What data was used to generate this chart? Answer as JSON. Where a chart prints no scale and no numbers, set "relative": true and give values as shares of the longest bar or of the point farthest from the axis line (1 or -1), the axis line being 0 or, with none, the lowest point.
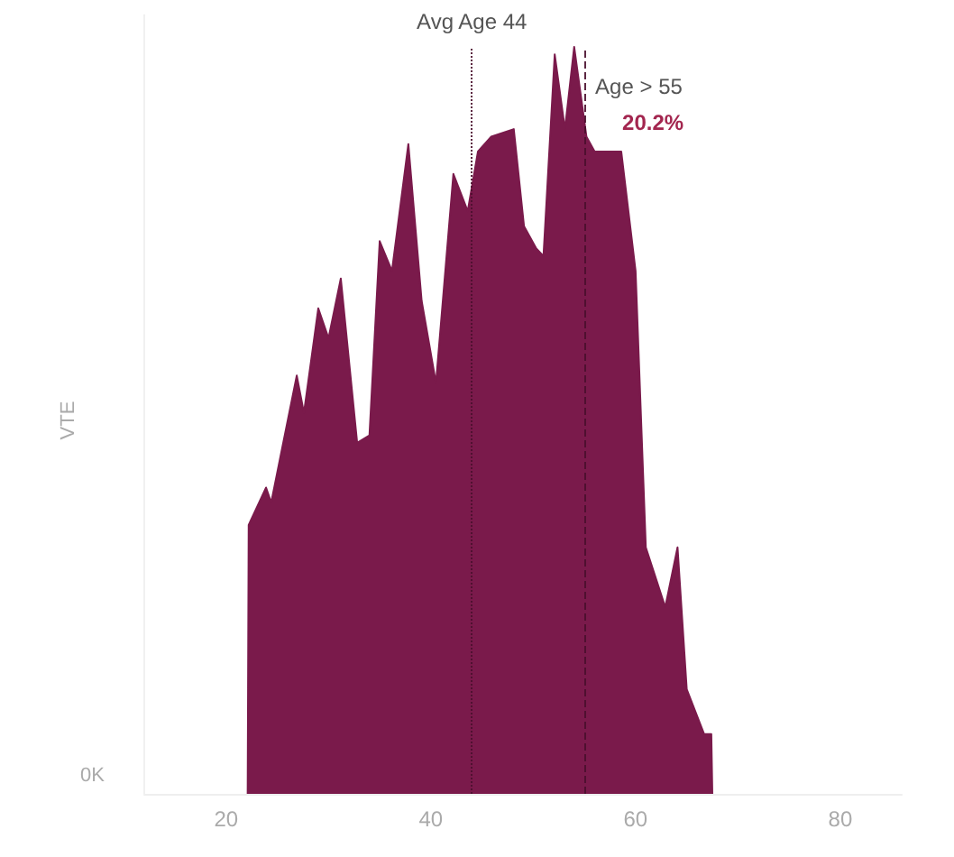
{
  "chart_data": {
    "type": "area",
    "ylabel": "VTE",
    "relative": true,
    "color": "#7a1a4b",
    "x": [
      22.1,
      22.2,
      23.9,
      24.4,
      26.9,
      27.6,
      29.0,
      30.0,
      31.2,
      32.8,
      34.0,
      35.0,
      36.2,
      37.8,
      39.1,
      40.5,
      42.2,
      43.6,
      44.6,
      45.9,
      48.1,
      49.1,
      50.3,
      51.0,
      52.1,
      53.1,
      54.0,
      55.2,
      56.0,
      58.6,
      60.0,
      61.0,
      62.9,
      64.1,
      65.0,
      66.7,
      67.4,
      67.5
    ],
    "values": [
      0,
      0.36,
      0.41,
      0.39,
      0.56,
      0.51,
      0.65,
      0.61,
      0.69,
      0.47,
      0.48,
      0.74,
      0.7,
      0.87,
      0.66,
      0.55,
      0.83,
      0.78,
      0.86,
      0.88,
      0.89,
      0.76,
      0.73,
      0.72,
      0.99,
      0.89,
      1,
      0.88,
      0.86,
      0.86,
      0.7,
      0.33,
      0.25,
      0.33,
      0.14,
      0.08,
      0.08,
      0
    ],
    "xlim": [
      12,
      86
    ],
    "xticks": [
      20,
      40,
      60,
      80
    ],
    "ref_lines": [
      {
        "axis": "x",
        "value": 44,
        "label": "Avg Age 44",
        "line_style": "dotted"
      },
      {
        "axis": "x",
        "value": 55,
        "label": "Age > 55",
        "line_style": "dashed"
      }
    ],
    "annotations": [
      "0K",
      "20.2%"
    ],
    "grid": false
  }
}
